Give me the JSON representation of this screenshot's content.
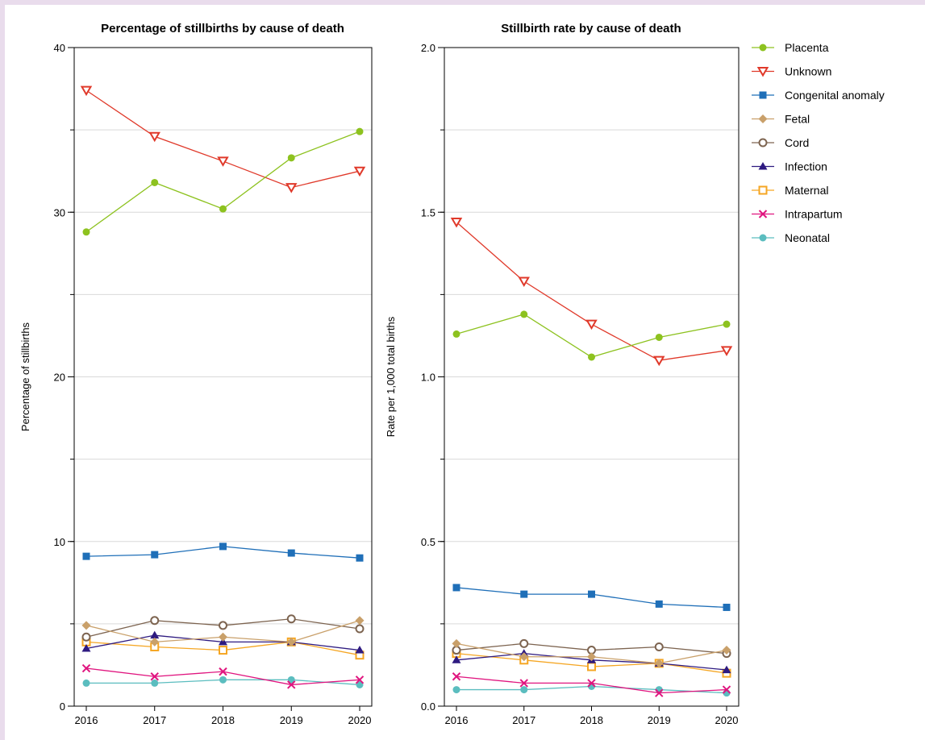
{
  "chart_data": [
    {
      "type": "line",
      "title": "Percentage of stillbirths by cause of death",
      "xlabel": "",
      "ylabel": "Percentage of stillbirths",
      "x": [
        "2016",
        "2017",
        "2018",
        "2019",
        "2020"
      ],
      "ylim": [
        0,
        40
      ],
      "y_ticks": [
        "0",
        "10",
        "20",
        "30",
        "40"
      ],
      "grid": true,
      "series": [
        {
          "name": "Placenta",
          "values": [
            28.8,
            31.8,
            30.2,
            33.3,
            34.9
          ]
        },
        {
          "name": "Unknown",
          "values": [
            37.4,
            34.6,
            33.1,
            31.5,
            32.5
          ]
        },
        {
          "name": "Congenital anomaly",
          "values": [
            9.1,
            9.2,
            9.7,
            9.3,
            9.0
          ]
        },
        {
          "name": "Fetal",
          "values": [
            4.9,
            3.9,
            4.2,
            3.9,
            5.2
          ]
        },
        {
          "name": "Cord",
          "values": [
            4.2,
            5.2,
            4.9,
            5.3,
            4.7
          ]
        },
        {
          "name": "Infection",
          "values": [
            3.5,
            4.3,
            3.9,
            3.9,
            3.4
          ]
        },
        {
          "name": "Maternal",
          "values": [
            3.9,
            3.6,
            3.4,
            3.9,
            3.1
          ]
        },
        {
          "name": "Intrapartum",
          "values": [
            2.3,
            1.8,
            2.1,
            1.3,
            1.6
          ]
        },
        {
          "name": "Neonatal",
          "values": [
            1.4,
            1.4,
            1.6,
            1.6,
            1.3
          ]
        }
      ]
    },
    {
      "type": "line",
      "title": "Stillbirth rate by cause of death",
      "xlabel": "",
      "ylabel": "Rate per 1,000 total births",
      "x": [
        "2016",
        "2017",
        "2018",
        "2019",
        "2020"
      ],
      "ylim": [
        0,
        2.0
      ],
      "y_ticks": [
        "0.0",
        "0.5",
        "1.0",
        "1.5",
        "2.0"
      ],
      "grid": true,
      "series": [
        {
          "name": "Placenta",
          "values": [
            1.13,
            1.19,
            1.06,
            1.12,
            1.16
          ]
        },
        {
          "name": "Unknown",
          "values": [
            1.47,
            1.29,
            1.16,
            1.05,
            1.08
          ]
        },
        {
          "name": "Congenital anomaly",
          "values": [
            0.36,
            0.34,
            0.34,
            0.31,
            0.3
          ]
        },
        {
          "name": "Fetal",
          "values": [
            0.19,
            0.15,
            0.15,
            0.13,
            0.17
          ]
        },
        {
          "name": "Cord",
          "values": [
            0.17,
            0.19,
            0.17,
            0.18,
            0.16
          ]
        },
        {
          "name": "Infection",
          "values": [
            0.14,
            0.16,
            0.14,
            0.13,
            0.11
          ]
        },
        {
          "name": "Maternal",
          "values": [
            0.16,
            0.14,
            0.12,
            0.13,
            0.1
          ]
        },
        {
          "name": "Intrapartum",
          "values": [
            0.09,
            0.07,
            0.07,
            0.04,
            0.05
          ]
        },
        {
          "name": "Neonatal",
          "values": [
            0.05,
            0.05,
            0.06,
            0.05,
            0.04
          ]
        }
      ]
    }
  ],
  "legend": {
    "position": "right",
    "items": [
      {
        "label": "Placenta",
        "color": "#8dc21f",
        "marker": "filled-circle"
      },
      {
        "label": "Unknown",
        "color": "#e0392a",
        "marker": "open-triangle-down"
      },
      {
        "label": "Congenital anomaly",
        "color": "#1f6fb8",
        "marker": "filled-square"
      },
      {
        "label": "Fetal",
        "color": "#c9a06a",
        "marker": "filled-diamond"
      },
      {
        "label": "Cord",
        "color": "#7d6450",
        "marker": "open-circle"
      },
      {
        "label": "Infection",
        "color": "#2e1a80",
        "marker": "filled-triangle-up"
      },
      {
        "label": "Maternal",
        "color": "#f5a623",
        "marker": "open-square"
      },
      {
        "label": "Intrapartum",
        "color": "#e0157f",
        "marker": "cross"
      },
      {
        "label": "Neonatal",
        "color": "#5bbdbf",
        "marker": "filled-circle"
      }
    ]
  }
}
